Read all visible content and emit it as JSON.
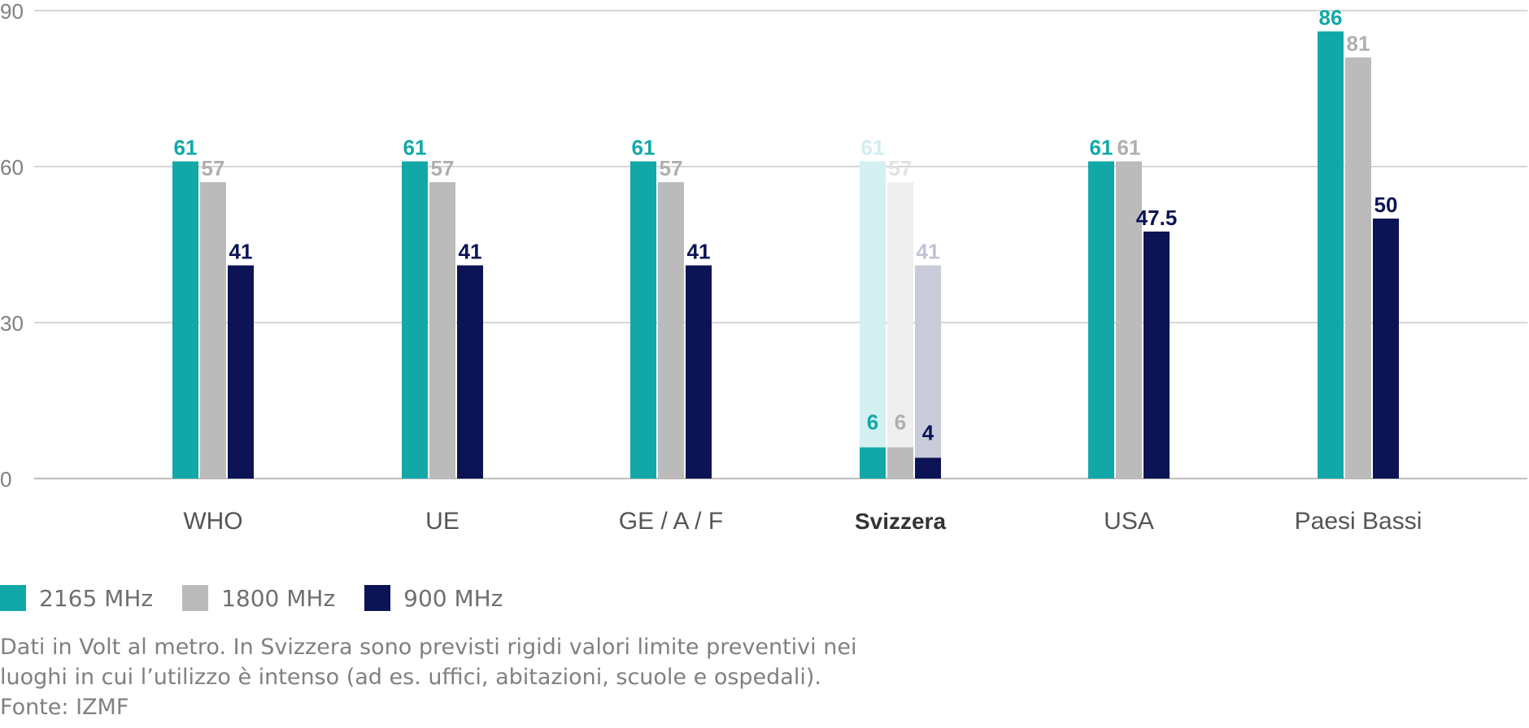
{
  "chart_data": {
    "type": "bar",
    "categories": [
      "WHO",
      "UE",
      "GE / A / F",
      "Svizzera",
      "USA",
      "Paesi Bassi"
    ],
    "series": [
      {
        "name": "2165 MHz",
        "color": "#12A8A8",
        "values": [
          61,
          61,
          61,
          6,
          61,
          86
        ],
        "labels": [
          "61",
          "61",
          "61",
          "6",
          "61",
          "86"
        ]
      },
      {
        "name": "1800 MHz",
        "color": "#BBBBBB",
        "values": [
          57,
          57,
          57,
          6,
          61,
          81
        ],
        "labels": [
          "57",
          "57",
          "57",
          "6",
          "61",
          "81"
        ]
      },
      {
        "name": "900 MHz",
        "color": "#0C1455",
        "values": [
          41,
          41,
          41,
          4,
          47.5,
          50
        ],
        "labels": [
          "41",
          "41",
          "41",
          "4",
          "47.5",
          "50"
        ]
      }
    ],
    "ghost": {
      "category": "Svizzera",
      "values": [
        61,
        57,
        41
      ],
      "labels": [
        "61",
        "57",
        "41"
      ]
    },
    "highlighted_category": "Svizzera",
    "ylim": [
      0,
      90
    ],
    "yticks": [
      0,
      30,
      60,
      90
    ],
    "grid": true,
    "legend_position": "bottom-left",
    "xlabel": "",
    "ylabel": ""
  },
  "legend": {
    "items": [
      {
        "label": "2165 MHz",
        "color": "#12A8A8"
      },
      {
        "label": "1800 MHz",
        "color": "#BBBBBB"
      },
      {
        "label": "900 MHz",
        "color": "#0C1455"
      }
    ]
  },
  "note": {
    "line1": "Dati in Volt al metro. In Svizzera sono previsti rigidi valori limite preventivi nei",
    "line2": "luoghi in cui l’utilizzo è intenso (ad es. uffici, abitazioni, scuole e ospedali).",
    "source": "Fonte: IZMF"
  }
}
